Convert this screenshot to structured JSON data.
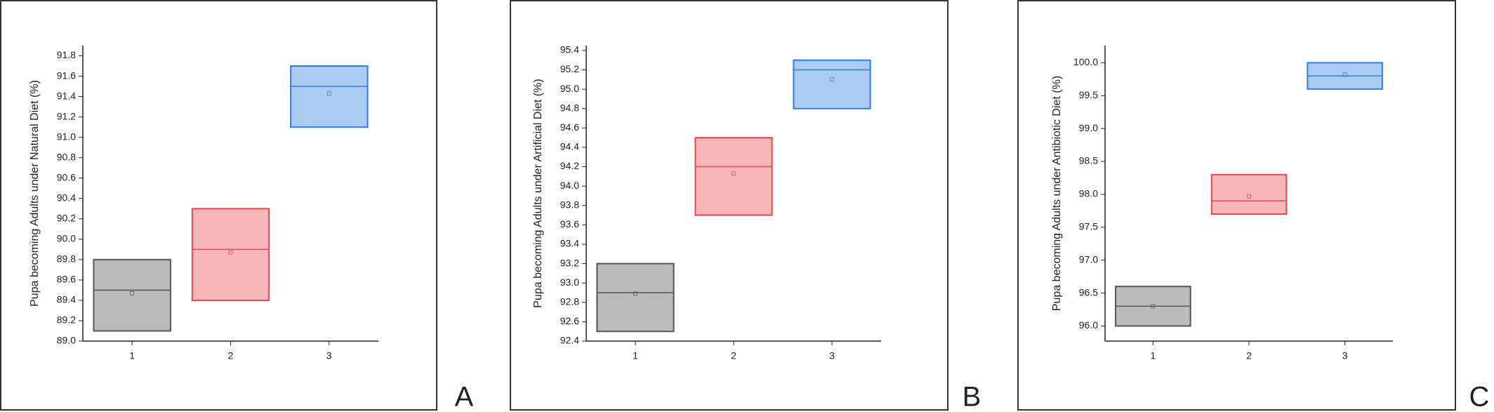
{
  "chart_data": [
    {
      "type": "box",
      "panel_label": "A",
      "ylabel": "Pupa becoming Adults under Natural Diet (%)",
      "categories": [
        "1",
        "2",
        "3"
      ],
      "q1": [
        89.1,
        89.4,
        91.1
      ],
      "median": [
        89.5,
        89.9,
        91.5
      ],
      "q3": [
        89.8,
        90.3,
        91.7
      ],
      "mean": [
        89.47,
        89.87,
        91.43
      ],
      "colors": [
        "#555555",
        "#e8474f",
        "#2f7de0"
      ],
      "ylim": [
        89.0,
        91.9
      ],
      "yticks": [
        {
          "value": 89.0,
          "label": "89.0"
        },
        89.2,
        89.4,
        89.6,
        89.8,
        {
          "value": 90.0,
          "label": "90.0"
        },
        90.2,
        90.4,
        90.6,
        90.8,
        {
          "value": 91.0,
          "label": "91.0"
        },
        91.2,
        91.4,
        91.6,
        91.8
      ]
    },
    {
      "type": "box",
      "panel_label": "B",
      "ylabel": "Pupa becoming Adults under Artificial Diet (%)",
      "categories": [
        "1",
        "2",
        "3"
      ],
      "q1": [
        92.5,
        93.7,
        94.8
      ],
      "median": [
        92.9,
        94.2,
        95.2
      ],
      "q3": [
        93.2,
        94.5,
        95.3
      ],
      "mean": [
        92.89,
        94.13,
        95.1
      ],
      "colors": [
        "#555555",
        "#e8474f",
        "#2f7de0"
      ],
      "ylim": [
        92.4,
        95.45
      ],
      "yticks": [
        92.4,
        92.6,
        92.8,
        {
          "value": 93.0,
          "label": "93.0"
        },
        93.2,
        93.4,
        93.6,
        93.8,
        {
          "value": 94.0,
          "label": "94.0"
        },
        94.2,
        94.4,
        94.6,
        94.8,
        {
          "value": 95.0,
          "label": "95.0"
        },
        95.2,
        95.4
      ]
    },
    {
      "type": "box",
      "panel_label": "C",
      "ylabel": "Pupa becoming Adults under Antibiotic Diet (%)",
      "categories": [
        "1",
        "2",
        "3"
      ],
      "q1": [
        96.0,
        97.7,
        99.6
      ],
      "median": [
        96.3,
        97.9,
        99.8
      ],
      "q3": [
        96.6,
        98.3,
        100.0
      ],
      "mean": [
        96.3,
        97.97,
        99.82
      ],
      "colors": [
        "#555555",
        "#e8474f",
        "#2f7de0"
      ],
      "ylim": [
        95.77,
        100.26
      ],
      "yticks": [
        {
          "value": 96.0,
          "label": "96.0"
        },
        96.5,
        {
          "value": 97.0,
          "label": "97.0"
        },
        97.5,
        {
          "value": 98.0,
          "label": "98.0"
        },
        98.5,
        {
          "value": 99.0,
          "label": "99.0"
        },
        99.5,
        {
          "value": 100.0,
          "label": "100.0"
        }
      ]
    }
  ]
}
